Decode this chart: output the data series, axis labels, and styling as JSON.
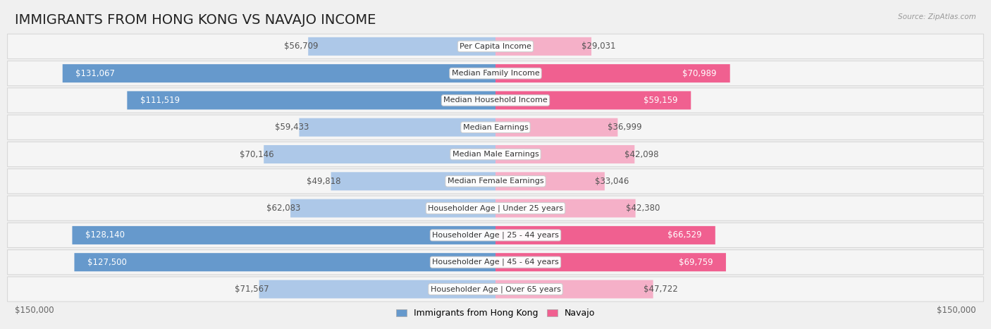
{
  "title": "IMMIGRANTS FROM HONG KONG VS NAVAJO INCOME",
  "source": "Source: ZipAtlas.com",
  "categories": [
    "Per Capita Income",
    "Median Family Income",
    "Median Household Income",
    "Median Earnings",
    "Median Male Earnings",
    "Median Female Earnings",
    "Householder Age | Under 25 years",
    "Householder Age | 25 - 44 years",
    "Householder Age | 45 - 64 years",
    "Householder Age | Over 65 years"
  ],
  "hk_values": [
    56709,
    131067,
    111519,
    59433,
    70146,
    49818,
    62083,
    128140,
    127500,
    71567
  ],
  "navajo_values": [
    29031,
    70989,
    59159,
    36999,
    42098,
    33046,
    42380,
    66529,
    69759,
    47722
  ],
  "hk_labels": [
    "$56,709",
    "$131,067",
    "$111,519",
    "$59,433",
    "$70,146",
    "$49,818",
    "$62,083",
    "$128,140",
    "$127,500",
    "$71,567"
  ],
  "navajo_labels": [
    "$29,031",
    "$70,989",
    "$59,159",
    "$36,999",
    "$42,098",
    "$33,046",
    "$42,380",
    "$66,529",
    "$69,759",
    "$47,722"
  ],
  "hk_color_light": "#adc8e8",
  "hk_color_dark": "#6699cc",
  "navajo_color_light": "#f5b0c8",
  "navajo_color_dark": "#f06090",
  "bg_color": "#f0f0f0",
  "row_bg": "#f5f5f5",
  "row_border": "#d8d8d8",
  "max_value": 150000,
  "xlabel_left": "$150,000",
  "xlabel_right": "$150,000",
  "legend_hk": "Immigrants from Hong Kong",
  "legend_navajo": "Navajo",
  "title_fontsize": 14,
  "label_fontsize": 8.5,
  "category_fontsize": 8.0,
  "hk_large_threshold": 80000,
  "nav_large_threshold": 50000
}
